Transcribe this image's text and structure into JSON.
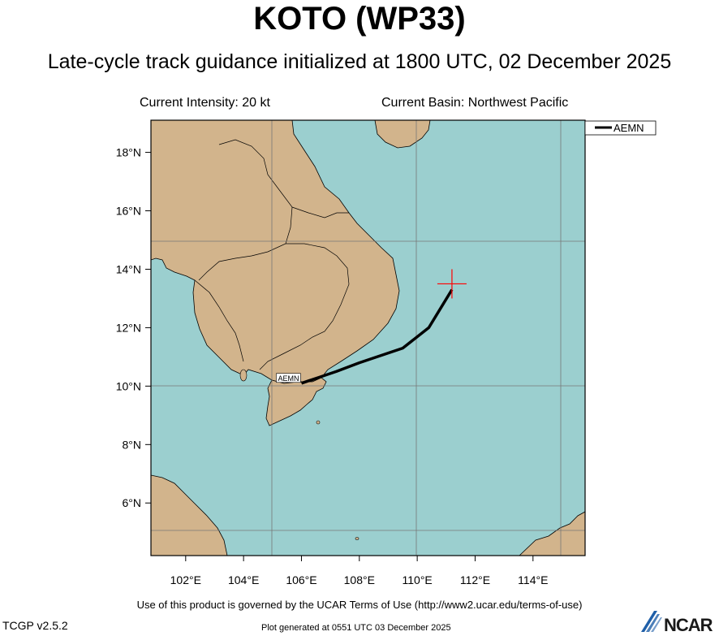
{
  "header": {
    "title": "KOTO (WP33)",
    "subtitle": "Late-cycle track guidance initialized at 1800 UTC, 02 December 2025",
    "current_intensity": "Current Intensity: 20 kt",
    "current_basin": "Current Basin: Northwest Pacific"
  },
  "map": {
    "ocean_color": "#9bcfcf",
    "land_color": "#d2b48c",
    "lat_range": [
      4.2,
      19.1
    ],
    "lon_range": [
      100.8,
      115.8
    ],
    "lat_ticks": [
      {
        "value": 18,
        "label": "18°N"
      },
      {
        "value": 16,
        "label": "16°N"
      },
      {
        "value": 14,
        "label": "14°N"
      },
      {
        "value": 12,
        "label": "12°N"
      },
      {
        "value": 10,
        "label": "10°N"
      },
      {
        "value": 8,
        "label": "8°N"
      },
      {
        "value": 6,
        "label": "6°N"
      }
    ],
    "lon_ticks": [
      {
        "value": 102,
        "label": "102°E"
      },
      {
        "value": 104,
        "label": "104°E"
      },
      {
        "value": 106,
        "label": "106°E"
      },
      {
        "value": 108,
        "label": "108°E"
      },
      {
        "value": 110,
        "label": "110°E"
      },
      {
        "value": 112,
        "label": "112°E"
      },
      {
        "value": 114,
        "label": "114°E"
      }
    ],
    "gridlines_lat": [
      15,
      10,
      5
    ],
    "gridlines_lon": [
      105,
      110,
      115
    ],
    "current_position": {
      "lat": 13.5,
      "lon": 111.2,
      "marker_color": "#ff0000"
    }
  },
  "legend": {
    "entries": [
      {
        "name": "AEMN",
        "color": "#000000"
      }
    ]
  },
  "tracks": [
    {
      "model": "AEMN",
      "color": "#000000",
      "label": "AEMN",
      "points": [
        {
          "lat": 13.3,
          "lon": 111.2
        },
        {
          "lat": 12.0,
          "lon": 110.4
        },
        {
          "lat": 11.3,
          "lon": 109.5
        },
        {
          "lat": 10.8,
          "lon": 108.0
        },
        {
          "lat": 10.5,
          "lon": 107.2
        },
        {
          "lat": 10.3,
          "lon": 106.6
        },
        {
          "lat": 10.1,
          "lon": 106.0
        }
      ]
    }
  ],
  "footer": {
    "terms": "Use of this product is governed by the UCAR Terms of Use (http://www2.ucar.edu/terms-of-use)",
    "version": "TCGP v2.5.2",
    "generated": "Plot generated at 0551 UTC   03 December 2025",
    "logo_text": "NCAR"
  }
}
